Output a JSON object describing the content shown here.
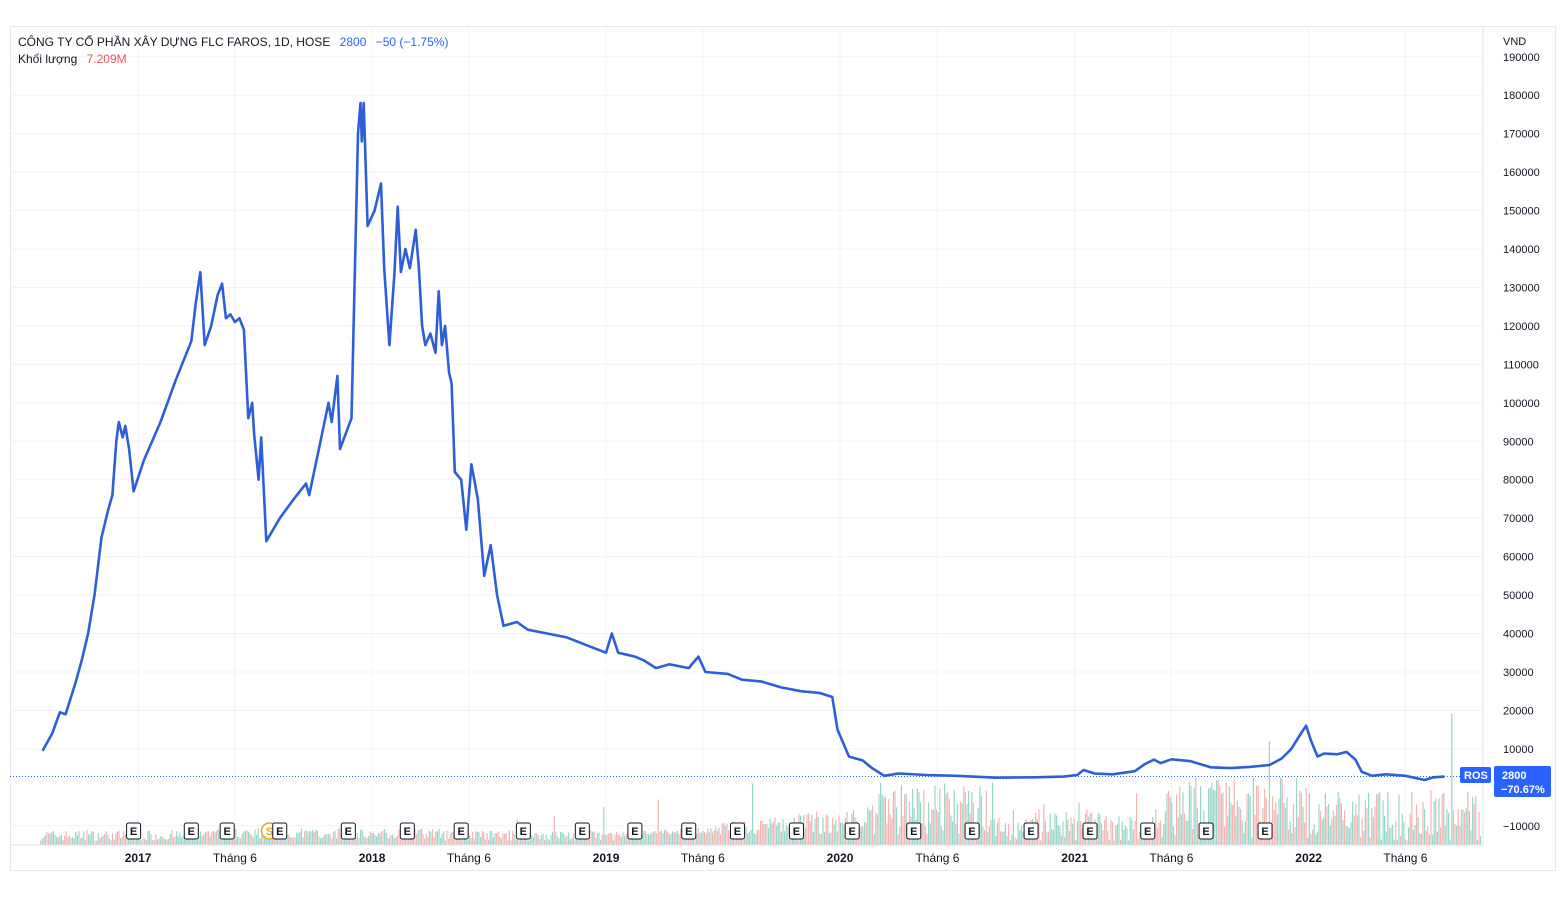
{
  "legend": {
    "symbol_line": "CÔNG TY CỔ PHẦN XÂY DỰNG FLC FAROS, 1D, HOSE",
    "last_value": "2800",
    "change": "−50 (−1.75%)",
    "volume_label": "Khối lượng",
    "volume_value": "7.209M"
  },
  "price_badge": {
    "ticker": "ROS",
    "price": "2800",
    "pct": "−70.67%",
    "color": "#2962ff"
  },
  "colors": {
    "line": "#2f5fd8",
    "vol_up": "#7fcdbb",
    "vol_down": "#f5a3a1",
    "grid": "#f0f3fa"
  },
  "events": {
    "earnings_label": "E",
    "split_label": "S"
  },
  "chart_data": {
    "type": "line",
    "title": "",
    "ylabel": "VND",
    "ylim": [
      -15000,
      198000
    ],
    "y_ticks": [
      -10000,
      10000,
      20000,
      30000,
      40000,
      50000,
      60000,
      70000,
      80000,
      90000,
      100000,
      110000,
      120000,
      130000,
      140000,
      150000,
      160000,
      170000,
      180000,
      190000
    ],
    "y_tick_labels": [
      "−10000",
      "10000",
      "20000",
      "30000",
      "40000",
      "50000",
      "60000",
      "70000",
      "80000",
      "90000",
      "100000",
      "110000",
      "120000",
      "130000",
      "140000",
      "150000",
      "160000",
      "170000",
      "180000",
      "190000"
    ],
    "x_axis": {
      "range": [
        "2016-08-01",
        "2022-09-30"
      ],
      "ticks": [
        {
          "date": "2017-01-01",
          "label": "2017",
          "major": true
        },
        {
          "date": "2017-06-01",
          "label": "Tháng 6",
          "major": false
        },
        {
          "date": "2018-01-01",
          "label": "2018",
          "major": true
        },
        {
          "date": "2018-06-01",
          "label": "Tháng 6",
          "major": false
        },
        {
          "date": "2019-01-01",
          "label": "2019",
          "major": true
        },
        {
          "date": "2019-06-01",
          "label": "Tháng 6",
          "major": false
        },
        {
          "date": "2020-01-01",
          "label": "2020",
          "major": true
        },
        {
          "date": "2020-06-01",
          "label": "Tháng 6",
          "major": false
        },
        {
          "date": "2021-01-01",
          "label": "2021",
          "major": true
        },
        {
          "date": "2021-06-01",
          "label": "Tháng 6",
          "major": false
        },
        {
          "date": "2022-01-01",
          "label": "2022",
          "major": true
        },
        {
          "date": "2022-06-01",
          "label": "Tháng 6",
          "major": false
        }
      ]
    },
    "last_price_line": 2800,
    "series": [
      {
        "points": [
          [
            "2016-08-05",
            9500
          ],
          [
            "2016-08-20",
            14000
          ],
          [
            "2016-09-01",
            19500
          ],
          [
            "2016-09-10",
            19000
          ],
          [
            "2016-09-25",
            27000
          ],
          [
            "2016-10-05",
            33000
          ],
          [
            "2016-10-15",
            40000
          ],
          [
            "2016-10-25",
            50000
          ],
          [
            "2016-11-05",
            65000
          ],
          [
            "2016-11-15",
            72000
          ],
          [
            "2016-11-22",
            76000
          ],
          [
            "2016-11-28",
            90000
          ],
          [
            "2016-12-02",
            95000
          ],
          [
            "2016-12-08",
            91000
          ],
          [
            "2016-12-12",
            94000
          ],
          [
            "2016-12-18",
            88000
          ],
          [
            "2016-12-25",
            77000
          ],
          [
            "2017-01-10",
            85000
          ],
          [
            "2017-02-05",
            95000
          ],
          [
            "2017-03-01",
            106000
          ],
          [
            "2017-03-25",
            116000
          ],
          [
            "2017-04-01",
            126000
          ],
          [
            "2017-04-08",
            134000
          ],
          [
            "2017-04-15",
            115000
          ],
          [
            "2017-04-25",
            120000
          ],
          [
            "2017-05-05",
            128000
          ],
          [
            "2017-05-12",
            131000
          ],
          [
            "2017-05-18",
            122000
          ],
          [
            "2017-05-25",
            123000
          ],
          [
            "2017-06-01",
            121000
          ],
          [
            "2017-06-08",
            122000
          ],
          [
            "2017-06-15",
            119000
          ],
          [
            "2017-06-22",
            96000
          ],
          [
            "2017-06-28",
            100000
          ],
          [
            "2017-07-01",
            92000
          ],
          [
            "2017-07-08",
            80000
          ],
          [
            "2017-07-12",
            91000
          ],
          [
            "2017-07-20",
            64000
          ],
          [
            "2017-08-10",
            70000
          ],
          [
            "2017-09-01",
            75000
          ],
          [
            "2017-09-20",
            79000
          ],
          [
            "2017-09-25",
            76000
          ],
          [
            "2017-10-10",
            88000
          ],
          [
            "2017-10-25",
            100000
          ],
          [
            "2017-10-30",
            95000
          ],
          [
            "2017-11-08",
            107000
          ],
          [
            "2017-11-12",
            88000
          ],
          [
            "2017-11-30",
            96000
          ],
          [
            "2017-12-10",
            170000
          ],
          [
            "2017-12-14",
            178000
          ],
          [
            "2017-12-16",
            168000
          ],
          [
            "2017-12-19",
            178000
          ],
          [
            "2017-12-25",
            146000
          ],
          [
            "2018-01-05",
            150000
          ],
          [
            "2018-01-15",
            157000
          ],
          [
            "2018-01-20",
            135000
          ],
          [
            "2018-01-28",
            115000
          ],
          [
            "2018-02-05",
            134000
          ],
          [
            "2018-02-10",
            151000
          ],
          [
            "2018-02-15",
            134000
          ],
          [
            "2018-02-22",
            140000
          ],
          [
            "2018-03-01",
            135000
          ],
          [
            "2018-03-10",
            145000
          ],
          [
            "2018-03-15",
            135000
          ],
          [
            "2018-03-20",
            120000
          ],
          [
            "2018-03-25",
            115000
          ],
          [
            "2018-04-02",
            118000
          ],
          [
            "2018-04-10",
            113000
          ],
          [
            "2018-04-15",
            129000
          ],
          [
            "2018-04-20",
            115000
          ],
          [
            "2018-04-25",
            120000
          ],
          [
            "2018-05-01",
            108000
          ],
          [
            "2018-05-05",
            105000
          ],
          [
            "2018-05-10",
            82000
          ],
          [
            "2018-05-20",
            80000
          ],
          [
            "2018-05-28",
            67000
          ],
          [
            "2018-06-05",
            84000
          ],
          [
            "2018-06-15",
            75000
          ],
          [
            "2018-06-25",
            55000
          ],
          [
            "2018-07-05",
            63000
          ],
          [
            "2018-07-15",
            50000
          ],
          [
            "2018-07-25",
            42000
          ],
          [
            "2018-08-15",
            43000
          ],
          [
            "2018-09-01",
            41000
          ],
          [
            "2018-10-01",
            40000
          ],
          [
            "2018-11-01",
            39000
          ],
          [
            "2018-12-01",
            37000
          ],
          [
            "2019-01-01",
            35000
          ],
          [
            "2019-01-10",
            40000
          ],
          [
            "2019-01-20",
            35000
          ],
          [
            "2019-02-15",
            34000
          ],
          [
            "2019-03-01",
            33000
          ],
          [
            "2019-03-20",
            31000
          ],
          [
            "2019-04-10",
            32000
          ],
          [
            "2019-05-10",
            31000
          ],
          [
            "2019-05-25",
            34000
          ],
          [
            "2019-06-05",
            30000
          ],
          [
            "2019-07-10",
            29500
          ],
          [
            "2019-08-01",
            28000
          ],
          [
            "2019-09-01",
            27500
          ],
          [
            "2019-10-01",
            26000
          ],
          [
            "2019-11-01",
            25000
          ],
          [
            "2019-12-01",
            24500
          ],
          [
            "2019-12-20",
            23500
          ],
          [
            "2019-12-28",
            15000
          ],
          [
            "2020-01-15",
            8000
          ],
          [
            "2020-02-05",
            7000
          ],
          [
            "2020-02-20",
            5000
          ],
          [
            "2020-03-10",
            3000
          ],
          [
            "2020-04-01",
            3600
          ],
          [
            "2020-05-15",
            3200
          ],
          [
            "2020-07-01",
            3000
          ],
          [
            "2020-09-01",
            2500
          ],
          [
            "2020-11-01",
            2600
          ],
          [
            "2020-12-15",
            2800
          ],
          [
            "2021-01-05",
            3200
          ],
          [
            "2021-01-15",
            4500
          ],
          [
            "2021-02-01",
            3600
          ],
          [
            "2021-03-01",
            3400
          ],
          [
            "2021-04-05",
            4200
          ],
          [
            "2021-04-20",
            6000
          ],
          [
            "2021-05-05",
            7200
          ],
          [
            "2021-05-15",
            6300
          ],
          [
            "2021-06-01",
            7300
          ],
          [
            "2021-07-01",
            6800
          ],
          [
            "2021-08-01",
            5200
          ],
          [
            "2021-09-01",
            5000
          ],
          [
            "2021-10-01",
            5300
          ],
          [
            "2021-11-01",
            5800
          ],
          [
            "2021-11-20",
            7500
          ],
          [
            "2021-12-05",
            10000
          ],
          [
            "2021-12-20",
            14000
          ],
          [
            "2021-12-28",
            16000
          ],
          [
            "2022-01-05",
            12000
          ],
          [
            "2022-01-15",
            8000
          ],
          [
            "2022-01-25",
            8800
          ],
          [
            "2022-02-15",
            8600
          ],
          [
            "2022-03-01",
            9200
          ],
          [
            "2022-03-15",
            7200
          ],
          [
            "2022-03-25",
            4000
          ],
          [
            "2022-04-10",
            3000
          ],
          [
            "2022-05-01",
            3400
          ],
          [
            "2022-06-01",
            3000
          ],
          [
            "2022-07-01",
            1900
          ],
          [
            "2022-07-15",
            2600
          ],
          [
            "2022-08-01",
            2800
          ]
        ]
      }
    ],
    "volume": {
      "scale_max_shares": 40000000,
      "last_value_shares": 7209000
    },
    "event_markers": [
      {
        "date": "2016-12-25",
        "type": "E"
      },
      {
        "date": "2017-03-25",
        "type": "E"
      },
      {
        "date": "2017-05-20",
        "type": "E"
      },
      {
        "date": "2017-07-25",
        "type": "S"
      },
      {
        "date": "2017-08-10",
        "type": "E"
      },
      {
        "date": "2017-11-25",
        "type": "E"
      },
      {
        "date": "2018-02-25",
        "type": "E"
      },
      {
        "date": "2018-05-20",
        "type": "E"
      },
      {
        "date": "2018-08-25",
        "type": "E"
      },
      {
        "date": "2018-11-25",
        "type": "E"
      },
      {
        "date": "2019-02-15",
        "type": "E"
      },
      {
        "date": "2019-05-10",
        "type": "E"
      },
      {
        "date": "2019-07-25",
        "type": "E"
      },
      {
        "date": "2019-10-25",
        "type": "E"
      },
      {
        "date": "2020-01-20",
        "type": "E"
      },
      {
        "date": "2020-04-25",
        "type": "E"
      },
      {
        "date": "2020-07-25",
        "type": "E"
      },
      {
        "date": "2020-10-25",
        "type": "E"
      },
      {
        "date": "2021-01-25",
        "type": "E"
      },
      {
        "date": "2021-04-25",
        "type": "E"
      },
      {
        "date": "2021-07-25",
        "type": "E"
      },
      {
        "date": "2021-10-25",
        "type": "E"
      }
    ]
  }
}
